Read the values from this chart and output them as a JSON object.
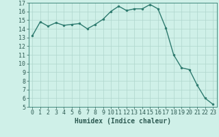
{
  "x": [
    0,
    1,
    2,
    3,
    4,
    5,
    6,
    7,
    8,
    9,
    10,
    11,
    12,
    13,
    14,
    15,
    16,
    17,
    18,
    19,
    20,
    21,
    22,
    23
  ],
  "y": [
    13.2,
    14.8,
    14.3,
    14.7,
    14.4,
    14.5,
    14.6,
    14.0,
    14.5,
    15.1,
    16.0,
    16.6,
    16.1,
    16.3,
    16.3,
    16.8,
    16.3,
    14.1,
    11.0,
    9.5,
    9.3,
    7.5,
    6.0,
    5.3
  ],
  "line_color": "#2d7a6e",
  "marker": "o",
  "marker_size": 2.0,
  "bg_color": "#cff0e8",
  "grid_color": "#aed6cc",
  "xlabel": "Humidex (Indice chaleur)",
  "xlim": [
    -0.5,
    23.5
  ],
  "ylim": [
    5,
    17
  ],
  "yticks": [
    5,
    6,
    7,
    8,
    9,
    10,
    11,
    12,
    13,
    14,
    15,
    16,
    17
  ],
  "xticks": [
    0,
    1,
    2,
    3,
    4,
    5,
    6,
    7,
    8,
    9,
    10,
    11,
    12,
    13,
    14,
    15,
    16,
    17,
    18,
    19,
    20,
    21,
    22,
    23
  ],
  "tick_color": "#2d5a52",
  "label_color": "#2d5a52",
  "spine_color": "#2d7a6e",
  "xlabel_fontsize": 7,
  "tick_fontsize": 6
}
